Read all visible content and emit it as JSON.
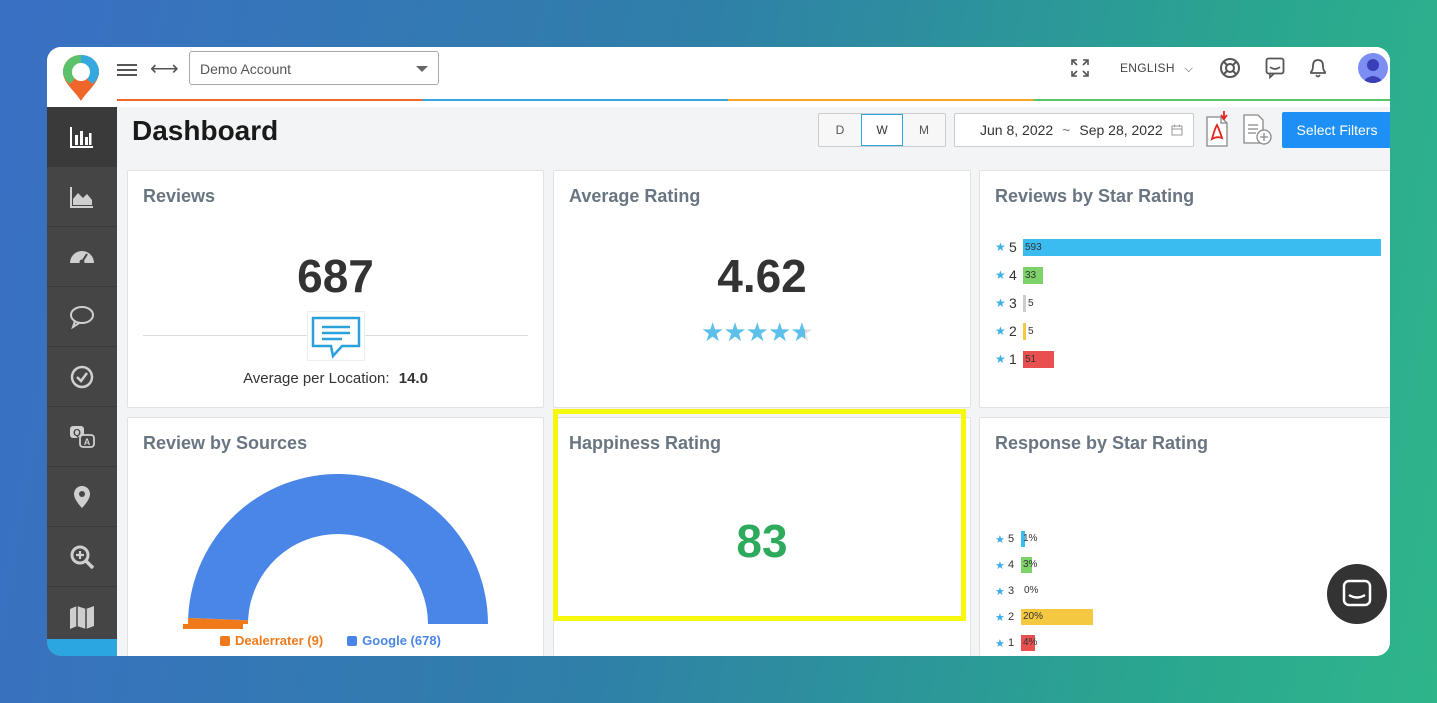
{
  "header": {
    "account_select": "Demo Account",
    "language": "ENGLISH",
    "page_title": "Dashboard",
    "period_tabs": [
      "D",
      "W",
      "M"
    ],
    "active_period": "W",
    "date_from": "Jun 8, 2022",
    "date_sep": "~",
    "date_to": "Sep 28, 2022",
    "filters_button": "Select Filters"
  },
  "sidebar": {
    "items": [
      "bar-chart-icon",
      "area-chart-icon",
      "dashboard-gauge-icon",
      "speech-bubble-icon",
      "check-circle-icon",
      "qa-icon",
      "map-pin-icon",
      "zoom-in-icon",
      "map-icon"
    ]
  },
  "reviews": {
    "title": "Reviews",
    "count": "687",
    "avg_label": "Average per Location:",
    "avg_value": "14.0"
  },
  "average_rating": {
    "title": "Average Rating",
    "value": "4.62",
    "stars_filled": 4.62
  },
  "star_rating": {
    "title": "Reviews by Star Rating",
    "rows": [
      {
        "star": "5",
        "value": "593",
        "count": 593,
        "color": "#3bbcf0"
      },
      {
        "star": "4",
        "value": "33",
        "count": 33,
        "color": "#7dd36a"
      },
      {
        "star": "3",
        "value": "5",
        "count": 5,
        "color": "#cccccc"
      },
      {
        "star": "2",
        "value": "5",
        "count": 5,
        "color": "#f5c842"
      },
      {
        "star": "1",
        "value": "51",
        "count": 51,
        "color": "#e85050"
      }
    ]
  },
  "sources": {
    "title": "Review by Sources",
    "legend": [
      {
        "label": "Dealerrater (9)",
        "value": 9,
        "color": "#f07a1a"
      },
      {
        "label": "Google (678)",
        "value": 678,
        "color": "#4a86e8"
      }
    ]
  },
  "happiness": {
    "title": "Happiness Rating",
    "value": "83"
  },
  "response": {
    "title": "Response by Star Rating",
    "rows": [
      {
        "star": "5",
        "value": "1%",
        "pct": 1,
        "color": "#3bbcf0"
      },
      {
        "star": "4",
        "value": "3%",
        "pct": 3,
        "color": "#7dd36a"
      },
      {
        "star": "3",
        "value": "0%",
        "pct": 0,
        "color": "#cccccc"
      },
      {
        "star": "2",
        "value": "20%",
        "pct": 20,
        "color": "#f5c842"
      },
      {
        "star": "1",
        "value": "4%",
        "pct": 4,
        "color": "#e85050"
      }
    ]
  },
  "colors": {
    "accent_blue": "#1e90f5",
    "happiness_green": "#2eaa5c",
    "highlight_yellow": "#f6f80d"
  }
}
